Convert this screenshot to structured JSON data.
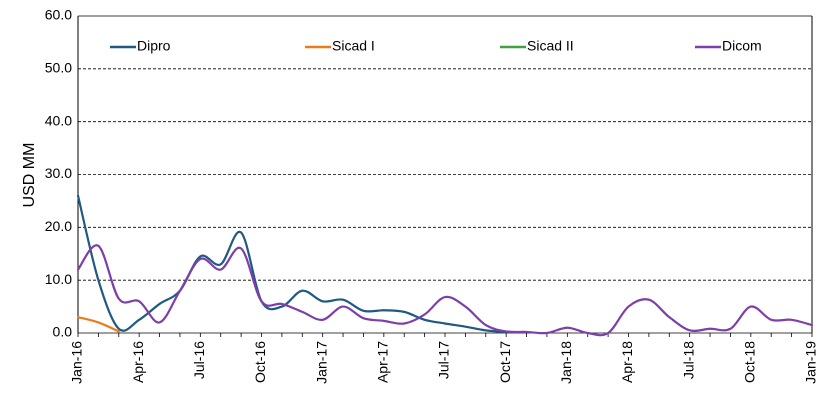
{
  "chart_data": {
    "type": "line",
    "ylabel": "USD MM",
    "categories": [
      "Jan-16",
      null,
      null,
      "Apr-16",
      null,
      null,
      "Jul-16",
      null,
      null,
      "Oct-16",
      null,
      null,
      "Jan-17",
      null,
      null,
      "Apr-17",
      null,
      null,
      "Jul-17",
      null,
      null,
      "Oct-17",
      null,
      null,
      "Jan-18",
      null,
      null,
      "Apr-18",
      null,
      null,
      "Jul-18",
      null,
      null,
      "Oct-18",
      null,
      null,
      "Jan-19"
    ],
    "series": [
      {
        "name": "Dipro",
        "color": "#1f5a85",
        "values": [
          26,
          10,
          0.8,
          2.5,
          5.5,
          8,
          14.5,
          13,
          19,
          6,
          5,
          8,
          6,
          6.3,
          4.2,
          4.3,
          4,
          2.5,
          1.8,
          1.2,
          0.5,
          0.2,
          null,
          null,
          null,
          null,
          null,
          null,
          null,
          null,
          null,
          null,
          null,
          null,
          null,
          null,
          null
        ]
      },
      {
        "name": "Sicad I",
        "color": "#e87d1e",
        "values": [
          3,
          2,
          0.3,
          null,
          null,
          null,
          null,
          null,
          null,
          null,
          null,
          null,
          null,
          null,
          null,
          null,
          null,
          null,
          null,
          null,
          null,
          null,
          null,
          null,
          null,
          null,
          null,
          null,
          null,
          null,
          null,
          null,
          null,
          null,
          null,
          null,
          null
        ]
      },
      {
        "name": "Sicad II",
        "color": "#3fa23a",
        "values": [
          null,
          null,
          null,
          null,
          null,
          null,
          null,
          null,
          null,
          null,
          null,
          null,
          null,
          null,
          null,
          null,
          null,
          null,
          null,
          null,
          null,
          null,
          null,
          null,
          null,
          null,
          null,
          null,
          null,
          null,
          null,
          null,
          null,
          null,
          null,
          null,
          null
        ]
      },
      {
        "name": "Dicom",
        "color": "#7d3fa8",
        "values": [
          12,
          16.5,
          6.5,
          6,
          2,
          8,
          14,
          12,
          16,
          6,
          5.5,
          4,
          2.5,
          5,
          2.8,
          2.3,
          1.8,
          3.5,
          6.8,
          5,
          1.5,
          0.3,
          0.2,
          0,
          1,
          0,
          0,
          5,
          6.3,
          3,
          0.5,
          0.8,
          0.8,
          5,
          2.5,
          2.5,
          1.5
        ]
      }
    ],
    "ylim": [
      0,
      60
    ],
    "yticks": [
      {
        "value": 0,
        "label": "0.0"
      },
      {
        "value": 10,
        "label": "10.0"
      },
      {
        "value": 20,
        "label": "20.0"
      },
      {
        "value": 30,
        "label": "30.0"
      },
      {
        "value": 40,
        "label": "40.0"
      },
      {
        "value": 50,
        "label": "50.0"
      },
      {
        "value": 60,
        "label": "60.0"
      }
    ],
    "grid": true
  }
}
